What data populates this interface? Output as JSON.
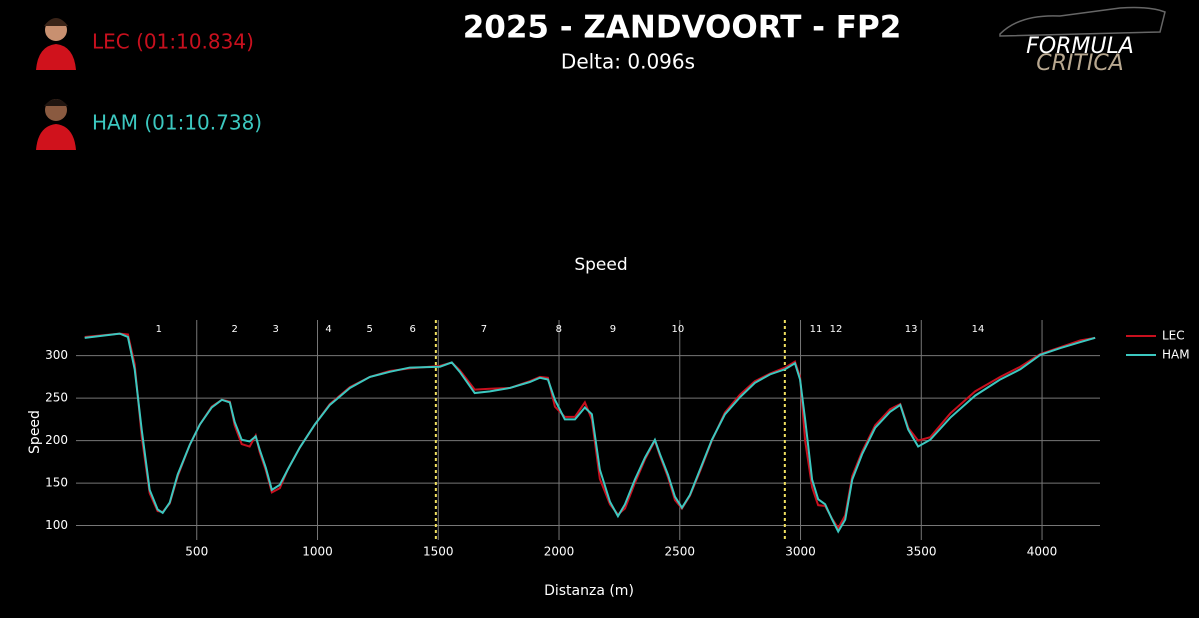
{
  "header": {
    "title": "2025 - ZANDVOORT - FP2",
    "subtitle": "Delta: 0.096s",
    "drivers": [
      {
        "label": "LEC (01:10.834)"
      },
      {
        "label": "HAM (01:10.738)"
      }
    ],
    "logo": {
      "line1": "FORMULA",
      "line2": "CRITICA"
    }
  },
  "chart_data": {
    "type": "line",
    "title": "Speed",
    "x_label": "Distanza (m)",
    "y_label": "Speed",
    "xlim": [
      0,
      4240
    ],
    "ylim": [
      83,
      342
    ],
    "xticks": [
      500,
      1000,
      1500,
      2000,
      2500,
      3000,
      3500,
      4000
    ],
    "yticks": [
      100,
      150,
      200,
      250,
      300
    ],
    "grid": true,
    "legend": "right",
    "x": [
      36,
      181,
      215,
      243,
      272,
      305,
      338,
      359,
      388,
      421,
      471,
      513,
      562,
      604,
      637,
      657,
      686,
      719,
      744,
      761,
      786,
      811,
      844,
      877,
      927,
      989,
      1051,
      1134,
      1217,
      1299,
      1382,
      1507,
      1556,
      1589,
      1651,
      1714,
      1797,
      1879,
      1921,
      1954,
      1983,
      2024,
      2066,
      2107,
      2136,
      2169,
      2211,
      2244,
      2273,
      2314,
      2356,
      2397,
      2418,
      2451,
      2480,
      2509,
      2542,
      2584,
      2633,
      2687,
      2749,
      2811,
      2874,
      2936,
      2977,
      2998,
      3019,
      3048,
      3073,
      3102,
      3131,
      3156,
      3185,
      3214,
      3255,
      3309,
      3371,
      3413,
      3446,
      3487,
      3537,
      3620,
      3723,
      3827,
      3910,
      3993,
      4076,
      4159,
      4220
    ],
    "series": [
      {
        "name": "LEC",
        "color": "#c8101e",
        "values": [
          322,
          326,
          325,
          290,
          205,
          138,
          117,
          116,
          126,
          158,
          195,
          219,
          240,
          248,
          246,
          218,
          196,
          193,
          206,
          186,
          165,
          139,
          144,
          166,
          192,
          219,
          243,
          263,
          275,
          282,
          285,
          288,
          292,
          283,
          260,
          261,
          262,
          270,
          275,
          274,
          240,
          228,
          228,
          245,
          225,
          155,
          125,
          113,
          120,
          150,
          178,
          200,
          182,
          157,
          130,
          120,
          135,
          164,
          200,
          233,
          254,
          270,
          279,
          286,
          293,
          275,
          200,
          145,
          124,
          123,
          108,
          97,
          112,
          158,
          187,
          218,
          237,
          243,
          215,
          200,
          204,
          232,
          258,
          275,
          287,
          302,
          310,
          318,
          321
        ]
      },
      {
        "name": "HAM",
        "color": "#3cc8c0",
        "values": [
          321,
          326,
          322,
          284,
          213,
          142,
          119,
          115,
          127,
          160,
          195,
          219,
          239,
          248,
          245,
          222,
          201,
          199,
          205,
          189,
          168,
          142,
          148,
          166,
          192,
          219,
          242,
          262,
          275,
          281,
          286,
          287,
          292,
          281,
          256,
          258,
          262,
          269,
          274,
          272,
          248,
          225,
          225,
          239,
          231,
          166,
          128,
          111,
          125,
          154,
          180,
          201,
          184,
          160,
          134,
          121,
          136,
          166,
          201,
          231,
          251,
          268,
          278,
          284,
          291,
          272,
          225,
          154,
          131,
          125,
          107,
          93,
          107,
          154,
          184,
          215,
          234,
          242,
          213,
          193,
          201,
          227,
          253,
          272,
          284,
          301,
          309,
          316,
          321
        ]
      }
    ],
    "sector_lines": {
      "color": "#f0e060",
      "x": [
        1490,
        2935
      ]
    },
    "corners": {
      "labels": [
        1,
        2,
        3,
        4,
        5,
        6,
        7,
        8,
        9,
        10,
        11,
        12,
        13,
        14
      ],
      "x": [
        343,
        657,
        827,
        1046,
        1216,
        1394,
        1689,
        1999,
        2223,
        2492,
        3064,
        3147,
        3458,
        3735
      ]
    }
  }
}
